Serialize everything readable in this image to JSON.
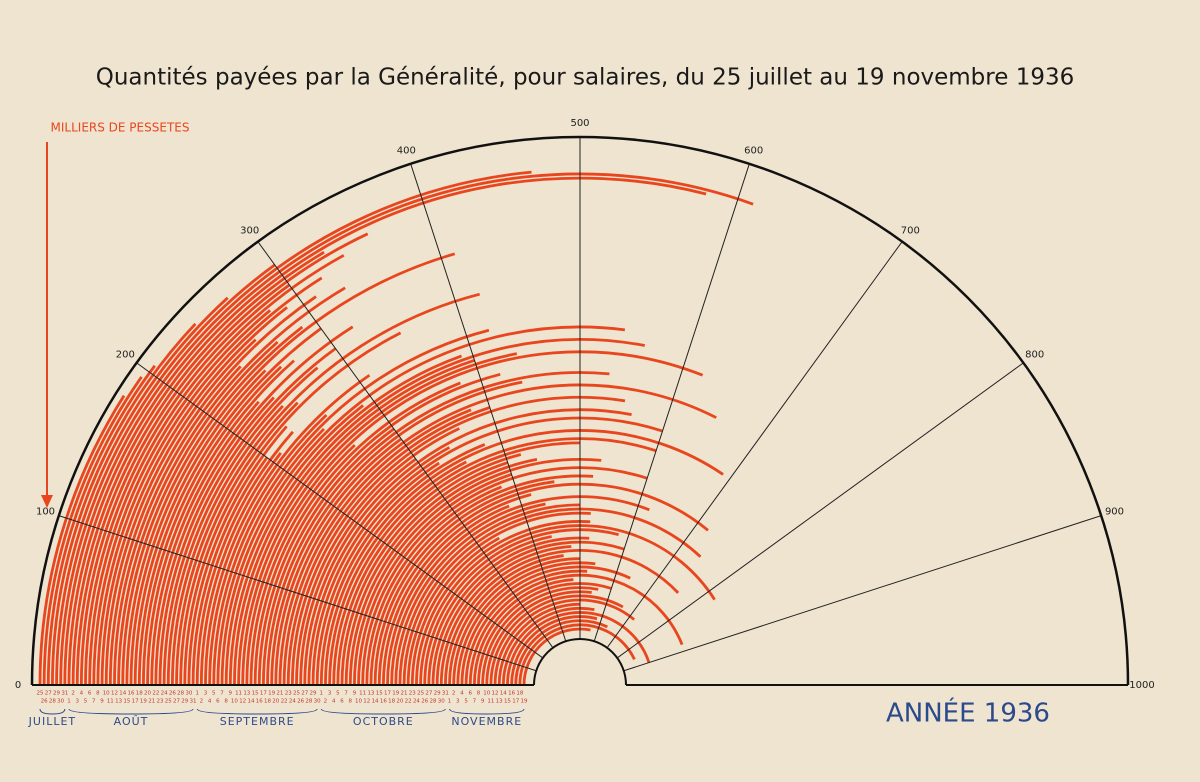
{
  "chart_data": {
    "type": "radial-bar",
    "title": "Quantités payées par la Généralité, pour salaires, du 25 juillet au 19 novembre 1936",
    "value_axis_label": "MILLIERS DE PESSETES",
    "year_label": "ANNÉE 1936",
    "color": "#e8461e",
    "ylim": [
      0,
      1000
    ],
    "yticks": [
      0,
      100,
      200,
      300,
      400,
      500,
      600,
      700,
      800,
      900,
      1000
    ],
    "months": [
      "JUILLET",
      "AOÛT",
      "SEPTEMBRE",
      "OCTOBRE",
      "NOVEMBRE"
    ],
    "month_lengths": [
      7,
      31,
      30,
      31,
      19
    ],
    "categories": [
      "25",
      "26",
      "27",
      "28",
      "29",
      "30",
      "31",
      "1",
      "2",
      "3",
      "4",
      "5",
      "6",
      "7",
      "8",
      "9",
      "10",
      "11",
      "12",
      "13",
      "14",
      "15",
      "16",
      "17",
      "18",
      "19",
      "20",
      "21",
      "22",
      "23",
      "24",
      "25",
      "26",
      "27",
      "28",
      "29",
      "30",
      "31",
      "1",
      "2",
      "3",
      "4",
      "5",
      "6",
      "7",
      "8",
      "9",
      "10",
      "11",
      "12",
      "13",
      "14",
      "15",
      "16",
      "17",
      "18",
      "19",
      "20",
      "21",
      "22",
      "23",
      "24",
      "25",
      "26",
      "27",
      "28",
      "29",
      "30",
      "1",
      "2",
      "3",
      "4",
      "5",
      "6",
      "7",
      "8",
      "9",
      "10",
      "11",
      "12",
      "13",
      "14",
      "15",
      "16",
      "17",
      "18",
      "19",
      "20",
      "21",
      "22",
      "23",
      "24",
      "25",
      "26",
      "27",
      "28",
      "29",
      "30",
      "31",
      "1",
      "2",
      "3",
      "4",
      "5",
      "6",
      "7",
      "8",
      "9",
      "10",
      "11",
      "12",
      "13",
      "14",
      "15",
      "16",
      "17",
      "18",
      "19"
    ],
    "values": [
      180,
      195,
      205,
      240,
      265,
      300,
      470,
      610,
      580,
      330,
      360,
      300,
      340,
      280,
      320,
      290,
      260,
      310,
      240,
      330,
      270,
      290,
      410,
      250,
      300,
      260,
      270,
      230,
      320,
      240,
      300,
      280,
      240,
      420,
      250,
      350,
      230,
      200,
      230,
      210,
      310,
      260,
      420,
      250,
      540,
      290,
      390,
      560,
      400,
      440,
      620,
      260,
      380,
      420,
      300,
      530,
      440,
      300,
      650,
      380,
      400,
      550,
      360,
      300,
      560,
      340,
      600,
      320,
      380,
      690,
      350,
      600,
      500,
      420,
      400,
      440,
      530,
      400,
      600,
      380,
      520,
      460,
      720,
      420,
      380,
      620,
      440,
      500,
      740,
      520,
      340,
      520,
      820,
      580,
      440,
      520,
      600,
      480,
      760,
      460,
      500,
      540,
      640,
      520,
      880,
      480,
      600,
      560,
      540,
      660,
      720,
      500,
      560,
      900,
      580,
      640,
      860,
      560
    ]
  }
}
